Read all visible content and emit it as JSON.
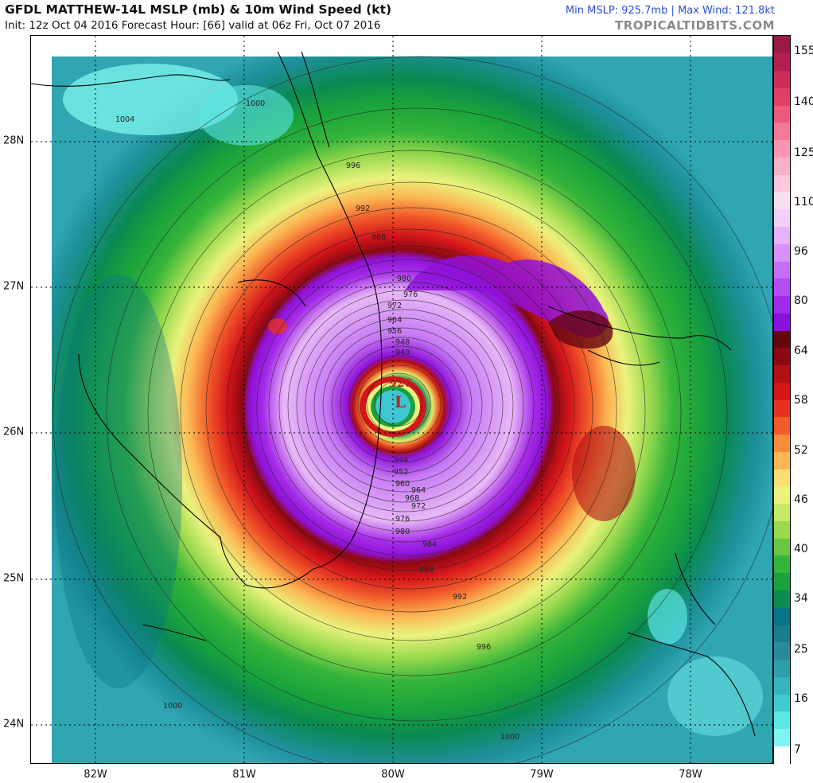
{
  "header": {
    "title": "GFDL MATTHEW-14L MSLP (mb) & 10m Wind Speed (kt)",
    "subtitle": "Init: 12z Oct 04 2016   Forecast Hour: [66]   valid at 06z Fri, Oct 07 2016",
    "stats": "Min MSLP: 925.7mb  |  Max Wind: 121.8kt",
    "brand": "TROPICALTIDBITS.COM"
  },
  "map": {
    "lat_labels": [
      "28N",
      "27N",
      "26N",
      "25N",
      "24N"
    ],
    "lon_labels": [
      "82W",
      "81W",
      "80W",
      "79W",
      "78W"
    ],
    "low_marker": {
      "pressure": "926",
      "symbol": "L"
    },
    "isobars": [
      "1000",
      "1004",
      "996",
      "992",
      "988",
      "980",
      "976",
      "972",
      "964",
      "956",
      "948",
      "940",
      "944",
      "952",
      "960",
      "964",
      "968",
      "972",
      "976",
      "980",
      "984",
      "988",
      "992",
      "996",
      "1000",
      "1000"
    ],
    "center": {
      "lat": 26.1,
      "lon": -79.95
    }
  },
  "colorbar": {
    "labels": [
      "155",
      "140",
      "125",
      "110",
      "96",
      "80",
      "64",
      "58",
      "52",
      "46",
      "40",
      "34",
      "25",
      "16",
      "7"
    ],
    "colors": [
      "#ffffff",
      "#7ef5ef",
      "#5be6e4",
      "#3dcbd0",
      "#35b4bd",
      "#2f9eab",
      "#2b8a9a",
      "#197d8b",
      "#0a7488",
      "#0b8a52",
      "#18a13d",
      "#36b43a",
      "#69c544",
      "#98d94e",
      "#c6e865",
      "#eaf27d",
      "#fbde72",
      "#fbb753",
      "#f78c3b",
      "#f15a2a",
      "#e83221",
      "#d4161b",
      "#b30f16",
      "#8c0812",
      "#650510",
      "#8a11dd",
      "#a02bea",
      "#b44cf2",
      "#c66ef6",
      "#d790f8",
      "#e6b2fa",
      "#f2d0fb",
      "#f8dff0",
      "#fbc8de",
      "#f9b0ca",
      "#f795b3",
      "#f47898",
      "#ee5a7e",
      "#e04068",
      "#cc2c58",
      "#b3204d",
      "#9a1a43"
    ]
  }
}
